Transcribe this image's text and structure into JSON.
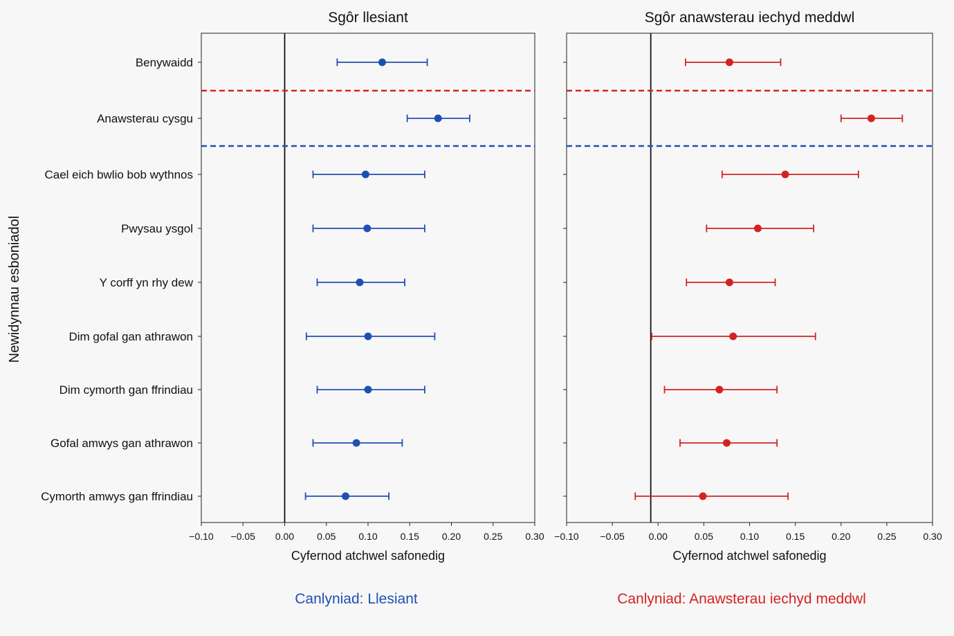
{
  "ylabel": "Newidynnau esboniadol",
  "categories": [
    "Benywaidd",
    "Anawsterau cysgu",
    "Cael eich bwlio bob wythnos",
    "Pwysau ysgol",
    "Y corff yn rhy dew",
    "Dim gofal gan athrawon",
    "Dim cymorth gan ffrindiau",
    "Gofal amwys gan athrawon",
    "Cymorth amwys gan ffrindiau"
  ],
  "captions": {
    "left": "Canlyniad: Llesiant",
    "right": "Canlyniad: Anawsterau iechyd meddwl"
  },
  "colors": {
    "left": "#1f4fb3",
    "right": "#d42222",
    "zero_line": "#111111"
  },
  "chart_data": [
    {
      "type": "scatter",
      "title": "Sgôr llesiant",
      "xlabel": "Cyfernod atchwel safonedig",
      "ylabel": "Newidynnau esboniadol",
      "xlim": [
        -0.1,
        0.3
      ],
      "xticks": [
        -0.1,
        -0.05,
        0.0,
        0.05,
        0.1,
        0.15,
        0.2,
        0.25,
        0.3
      ],
      "xtick_labels": [
        "−0.10",
        "−0.05",
        "0.00",
        "0.05",
        "0.10",
        "0.15",
        "0.20",
        "0.25",
        "0.30"
      ],
      "categories": [
        "Benywaidd",
        "Anawsterau cysgu",
        "Cael eich bwlio bob wythnos",
        "Pwysau ysgol",
        "Y corff yn rhy dew",
        "Dim gofal gan athrawon",
        "Dim cymorth gan ffrindiau",
        "Gofal amwys gan athrawon",
        "Cymorth amwys gan ffrindiau"
      ],
      "estimate": [
        0.117,
        0.184,
        0.097,
        0.099,
        0.09,
        0.1,
        0.1,
        0.086,
        0.073
      ],
      "ci_low": [
        0.063,
        0.147,
        0.034,
        0.034,
        0.039,
        0.026,
        0.039,
        0.034,
        0.025
      ],
      "ci_high": [
        0.171,
        0.222,
        0.168,
        0.168,
        0.144,
        0.18,
        0.168,
        0.141,
        0.125
      ],
      "color": "#1f4fb3",
      "reference_line_x": 0.0,
      "separators": [
        {
          "between": [
            "Benywaidd",
            "Anawsterau cysgu"
          ],
          "style": "dashed",
          "color": "#d42222"
        },
        {
          "between": [
            "Anawsterau cysgu",
            "Cael eich bwlio bob wythnos"
          ],
          "style": "dashed",
          "color": "#1f4fb3"
        }
      ],
      "grid": false
    },
    {
      "type": "scatter",
      "title": "Sgôr anawsterau iechyd meddwl",
      "xlabel": "Cyfernod atchwel safonedig",
      "xlim": [
        -0.1,
        0.3
      ],
      "xticks": [
        -0.1,
        -0.05,
        0.0,
        0.05,
        0.1,
        0.15,
        0.2,
        0.25,
        0.3
      ],
      "xtick_labels": [
        "−0.10",
        "−0.05",
        "0.00",
        "0.05",
        "0.10",
        "0.15",
        "0.20",
        "0.25",
        "0.30"
      ],
      "categories": [
        "Benywaidd",
        "Anawsterau cysgu",
        "Cael eich bwlio bob wythnos",
        "Pwysau ysgol",
        "Y corff yn rhy dew",
        "Dim gofal gan athrawon",
        "Dim cymorth gan ffrindiau",
        "Gofal amwys gan athrawon",
        "Cymorth amwys gan ffrindiau"
      ],
      "estimate": [
        0.078,
        0.233,
        0.139,
        0.109,
        0.078,
        0.082,
        0.067,
        0.075,
        0.049
      ],
      "ci_low": [
        0.03,
        0.2,
        0.07,
        0.053,
        0.031,
        -0.007,
        0.007,
        0.024,
        -0.025
      ],
      "ci_high": [
        0.134,
        0.267,
        0.219,
        0.17,
        0.128,
        0.172,
        0.13,
        0.13,
        0.142
      ],
      "color": "#d42222",
      "reference_line_x": -0.008,
      "separators": [
        {
          "between": [
            "Benywaidd",
            "Anawsterau cysgu"
          ],
          "style": "dashed",
          "color": "#d42222"
        },
        {
          "between": [
            "Anawsterau cysgu",
            "Cael eich bwlio bob wythnos"
          ],
          "style": "dashed",
          "color": "#1f4fb3"
        }
      ],
      "grid": false
    }
  ]
}
